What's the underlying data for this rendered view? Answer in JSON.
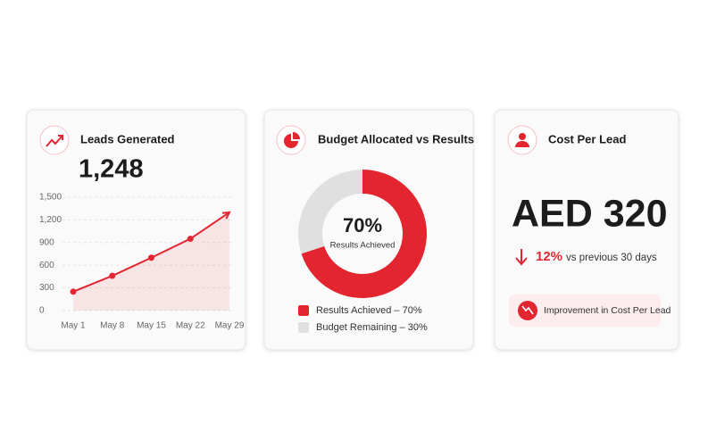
{
  "cards": [
    {
      "title": "Leads Generated",
      "value": "1,248"
    },
    {
      "title": "Budget Allocated vs Results"
    },
    {
      "title": "Cost Per Lead",
      "value": "AED 320",
      "change": "12%",
      "change_note": "vs previous 30 days",
      "badge": "Improvement in Cost Per Lead"
    }
  ],
  "chart_data": [
    {
      "type": "line",
      "categories": [
        "May 1",
        "May 8",
        "May 15",
        "May 22",
        "May 29"
      ],
      "values": [
        250,
        460,
        700,
        950,
        1300
      ],
      "color": "#e32530",
      "ylim": [
        0,
        1500
      ],
      "yticks": [
        0,
        300,
        600,
        900,
        {
          "value": 1200,
          "label": "1,200"
        },
        {
          "value": 1500,
          "label": "1,500"
        }
      ],
      "grid": true
    },
    {
      "type": "pie",
      "categories": [
        "Results Achieved – 70%",
        "Budget Remaining – 30%"
      ],
      "values": [
        70,
        30
      ],
      "value_labels": [
        "70%",
        null
      ],
      "center_caption": "Results Achieved",
      "colors": [
        "#e32530",
        "#e0e0e0"
      ]
    }
  ]
}
